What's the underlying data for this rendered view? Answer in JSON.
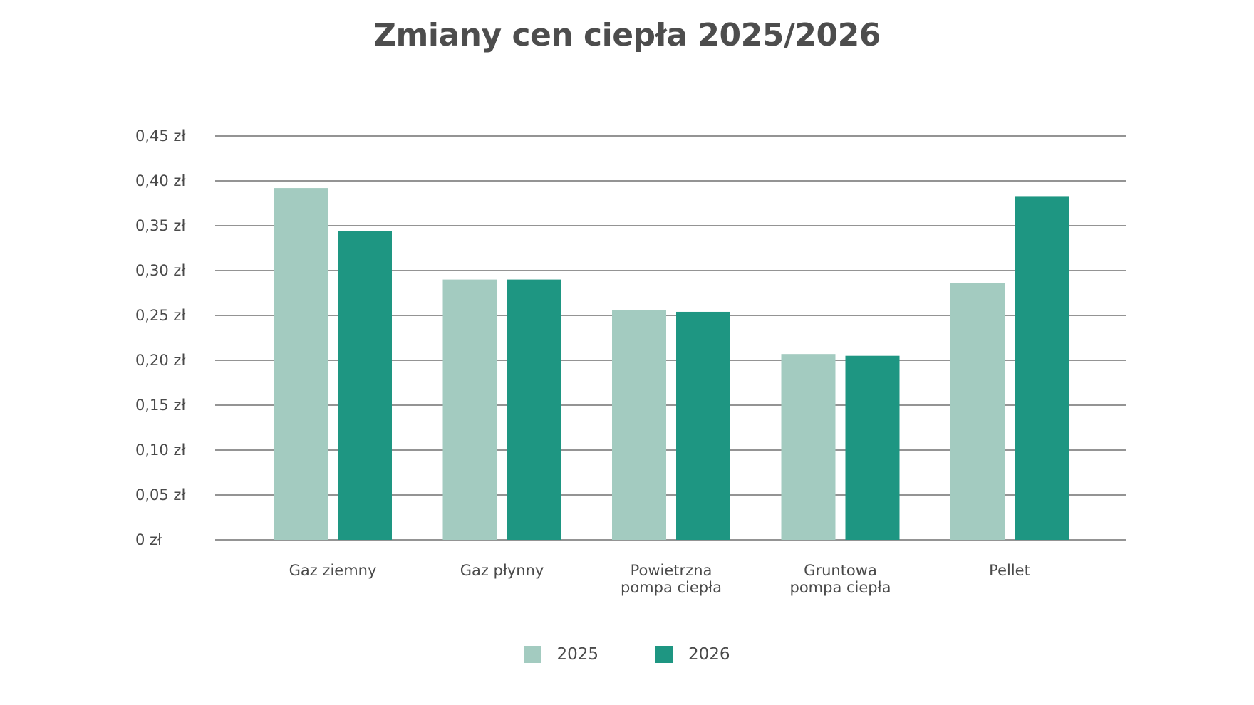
{
  "chart_data": {
    "type": "bar",
    "title": "Zmiany cen ciepła 2025/2026",
    "categories": [
      [
        "Gaz ziemny"
      ],
      [
        "Gaz płynny"
      ],
      [
        "Powietrzna",
        "pompa ciepła"
      ],
      [
        "Gruntowa",
        "pompa ciepła"
      ],
      [
        "Pellet"
      ]
    ],
    "series": [
      {
        "name": "2025",
        "color": "#a3cbc0",
        "values": [
          0.392,
          0.29,
          0.256,
          0.207,
          0.286
        ]
      },
      {
        "name": "2026",
        "color": "#1e9682",
        "values": [
          0.344,
          0.29,
          0.254,
          0.205,
          0.383
        ]
      }
    ],
    "ylim": [
      0,
      0.45
    ],
    "yticks": [
      0,
      0.05,
      0.1,
      0.15,
      0.2,
      0.25,
      0.3,
      0.35,
      0.4,
      0.45
    ],
    "ytick_labels": [
      "0 zł",
      "0,05 zł",
      "0,10 zł",
      "0,15 zł",
      "0,20 zł",
      "0,25 zł",
      "0,30 zł",
      "0,35 zł",
      "0,40 zł",
      "0,45 zł"
    ],
    "grid": true,
    "legend_position": "bottom-center"
  }
}
